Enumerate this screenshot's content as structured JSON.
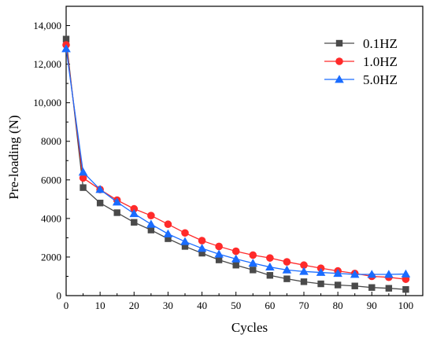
{
  "chart_data": {
    "type": "line",
    "title": "",
    "xlabel": "Cycles",
    "ylabel": "Pre-loading (N)",
    "xlim": [
      0,
      105
    ],
    "ylim": [
      0,
      15000
    ],
    "xticks": [
      0,
      10,
      20,
      30,
      40,
      50,
      60,
      70,
      80,
      90,
      100
    ],
    "yticks": [
      0,
      2000,
      4000,
      6000,
      8000,
      10000,
      12000,
      14000
    ],
    "ytick_labels": [
      "0",
      "2000",
      "4000",
      "6000",
      "8000",
      "10,000",
      "12,000",
      "14,000"
    ],
    "grid": false,
    "legend": "top-right",
    "x": [
      0,
      5,
      10,
      15,
      20,
      25,
      30,
      35,
      40,
      45,
      50,
      55,
      60,
      65,
      70,
      75,
      80,
      85,
      90,
      95,
      100
    ],
    "series": [
      {
        "name": "0.1HZ",
        "color": "#4a4a4a",
        "marker": "square",
        "values": [
          13300,
          5600,
          4800,
          4300,
          3800,
          3400,
          2950,
          2550,
          2200,
          1850,
          1580,
          1330,
          1050,
          870,
          720,
          610,
          550,
          500,
          420,
          380,
          320
        ]
      },
      {
        "name": "1.0HZ",
        "color": "#ff2a2a",
        "marker": "circle",
        "values": [
          13000,
          6100,
          5500,
          4950,
          4500,
          4150,
          3700,
          3250,
          2850,
          2550,
          2300,
          2100,
          1950,
          1750,
          1580,
          1420,
          1280,
          1150,
          1000,
          950,
          850
        ]
      },
      {
        "name": "5.0HZ",
        "color": "#1a6cff",
        "marker": "triangle",
        "values": [
          12800,
          6400,
          5500,
          4850,
          4250,
          3700,
          3200,
          2800,
          2450,
          2150,
          1900,
          1680,
          1480,
          1330,
          1250,
          1200,
          1150,
          1100,
          1100,
          1100,
          1120
        ]
      }
    ]
  }
}
